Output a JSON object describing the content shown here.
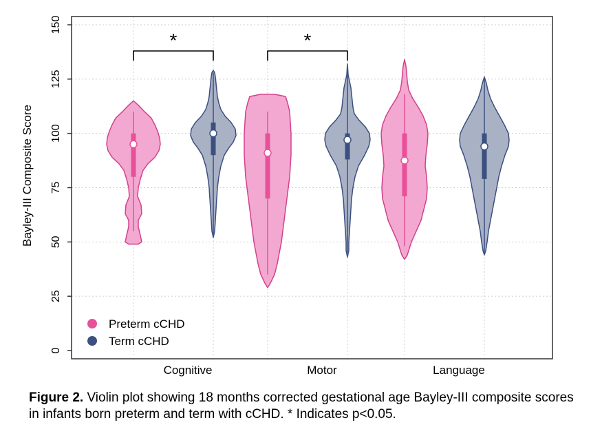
{
  "chart_data": {
    "type": "violin",
    "ylabel": "Bayley-III Composite Score",
    "xlabel": "",
    "ylim": [
      0,
      150
    ],
    "yticks": [
      0,
      25,
      50,
      75,
      100,
      125,
      150
    ],
    "categories": [
      "Cognitive",
      "Motor",
      "Language"
    ],
    "grid": true,
    "legend_position": "bottom-left",
    "series": [
      {
        "name": "Preterm cCHD",
        "color": "#e8509a",
        "fill": "#f2a8d0",
        "stroke": "#d4418a",
        "groups": [
          {
            "category": "Cognitive",
            "median": 95,
            "q1": 80,
            "q3": 100,
            "whisker_low": 55,
            "whisker_high": 110,
            "min": 49,
            "max": 115,
            "profile": [
              [
                49,
                7
              ],
              [
                50,
                12
              ],
              [
                53,
                10
              ],
              [
                57,
                7
              ],
              [
                60,
                7
              ],
              [
                63,
                12
              ],
              [
                67,
                11
              ],
              [
                71,
                6
              ],
              [
                75,
                7
              ],
              [
                79,
                10
              ],
              [
                83,
                14
              ],
              [
                86,
                21
              ],
              [
                89,
                31
              ],
              [
                92,
                37
              ],
              [
                95,
                39
              ],
              [
                98,
                38
              ],
              [
                101,
                35
              ],
              [
                104,
                31
              ],
              [
                107,
                26
              ],
              [
                110,
                16
              ],
              [
                113,
                7
              ],
              [
                115,
                0
              ]
            ]
          },
          {
            "category": "Motor",
            "median": 91,
            "q1": 70,
            "q3": 100,
            "whisker_low": 35,
            "whisker_high": 110,
            "min": 29,
            "max": 118,
            "profile": [
              [
                29,
                0
              ],
              [
                31,
                4
              ],
              [
                35,
                10
              ],
              [
                40,
                14
              ],
              [
                45,
                17
              ],
              [
                50,
                20
              ],
              [
                55,
                22
              ],
              [
                60,
                24
              ],
              [
                65,
                26
              ],
              [
                70,
                28
              ],
              [
                75,
                30
              ],
              [
                80,
                32
              ],
              [
                85,
                33
              ],
              [
                90,
                34
              ],
              [
                95,
                34
              ],
              [
                100,
                34
              ],
              [
                105,
                33
              ],
              [
                110,
                32
              ],
              [
                114,
                29
              ],
              [
                117,
                26
              ],
              [
                118,
                10
              ]
            ]
          },
          {
            "category": "Language",
            "median": 87.5,
            "q1": 71,
            "q3": 100,
            "whisker_low": 48,
            "whisker_high": 118,
            "min": 42,
            "max": 134,
            "profile": [
              [
                42,
                0
              ],
              [
                44,
                4
              ],
              [
                47,
                7
              ],
              [
                50,
                10
              ],
              [
                55,
                17
              ],
              [
                60,
                24
              ],
              [
                65,
                28
              ],
              [
                70,
                32
              ],
              [
                75,
                33
              ],
              [
                80,
                32
              ],
              [
                85,
                30
              ],
              [
                90,
                31
              ],
              [
                95,
                33
              ],
              [
                100,
                34
              ],
              [
                104,
                32
              ],
              [
                108,
                27
              ],
              [
                112,
                20
              ],
              [
                116,
                12
              ],
              [
                120,
                6
              ],
              [
                124,
                4
              ],
              [
                128,
                3
              ],
              [
                131,
                2
              ],
              [
                134,
                0
              ]
            ]
          }
        ]
      },
      {
        "name": "Term cCHD",
        "color": "#3c5080",
        "fill": "#a9b1c5",
        "stroke": "#3c5080",
        "groups": [
          {
            "category": "Cognitive",
            "median": 100,
            "q1": 90,
            "q3": 105,
            "whisker_low": 53,
            "whisker_high": 128,
            "min": 52,
            "max": 129,
            "profile": [
              [
                52,
                0
              ],
              [
                55,
                2
              ],
              [
                60,
                3
              ],
              [
                65,
                4
              ],
              [
                70,
                5
              ],
              [
                75,
                6
              ],
              [
                80,
                8
              ],
              [
                85,
                11
              ],
              [
                90,
                16
              ],
              [
                93,
                22
              ],
              [
                96,
                29
              ],
              [
                99,
                33
              ],
              [
                102,
                32
              ],
              [
                105,
                26
              ],
              [
                108,
                17
              ],
              [
                111,
                11
              ],
              [
                114,
                8
              ],
              [
                117,
                6
              ],
              [
                120,
                5
              ],
              [
                123,
                4
              ],
              [
                126,
                3
              ],
              [
                128,
                2
              ],
              [
                129,
                0
              ]
            ]
          },
          {
            "category": "Motor",
            "median": 97,
            "q1": 88,
            "q3": 100,
            "whisker_low": 45,
            "whisker_high": 130,
            "min": 43,
            "max": 132,
            "profile": [
              [
                43,
                0
              ],
              [
                46,
                2
              ],
              [
                50,
                2
              ],
              [
                55,
                3
              ],
              [
                60,
                4
              ],
              [
                65,
                5
              ],
              [
                70,
                6
              ],
              [
                75,
                8
              ],
              [
                80,
                11
              ],
              [
                85,
                16
              ],
              [
                90,
                25
              ],
              [
                94,
                31
              ],
              [
                97,
                33
              ],
              [
                100,
                32
              ],
              [
                103,
                26
              ],
              [
                106,
                17
              ],
              [
                109,
                10
              ],
              [
                112,
                8
              ],
              [
                115,
                7
              ],
              [
                118,
                6
              ],
              [
                121,
                5
              ],
              [
                124,
                3
              ],
              [
                127,
                1
              ],
              [
                132,
                0
              ]
            ]
          },
          {
            "category": "Language",
            "median": 94,
            "q1": 79,
            "q3": 100,
            "whisker_low": 45,
            "whisker_high": 125,
            "min": 44,
            "max": 126,
            "profile": [
              [
                44,
                0
              ],
              [
                46,
                2
              ],
              [
                50,
                4
              ],
              [
                55,
                6
              ],
              [
                60,
                9
              ],
              [
                65,
                12
              ],
              [
                70,
                15
              ],
              [
                75,
                18
              ],
              [
                80,
                21
              ],
              [
                85,
                25
              ],
              [
                90,
                30
              ],
              [
                94,
                35
              ],
              [
                97,
                36
              ],
              [
                100,
                35
              ],
              [
                104,
                29
              ],
              [
                108,
                22
              ],
              [
                112,
                15
              ],
              [
                116,
                9
              ],
              [
                120,
                5
              ],
              [
                123,
                3
              ],
              [
                126,
                0
              ]
            ]
          }
        ]
      }
    ],
    "annotations": [
      {
        "text": "*",
        "between": [
          "Cognitive",
          "Cognitive"
        ],
        "y": 138
      },
      {
        "text": "*",
        "between": [
          "Motor",
          "Motor"
        ],
        "y": 138
      }
    ]
  },
  "caption": {
    "label": "Figure 2.",
    "text": " Violin plot showing 18 months corrected gestational age Bayley-III composite scores in infants born preterm and term with cCHD.  * Indicates p<0.05."
  }
}
